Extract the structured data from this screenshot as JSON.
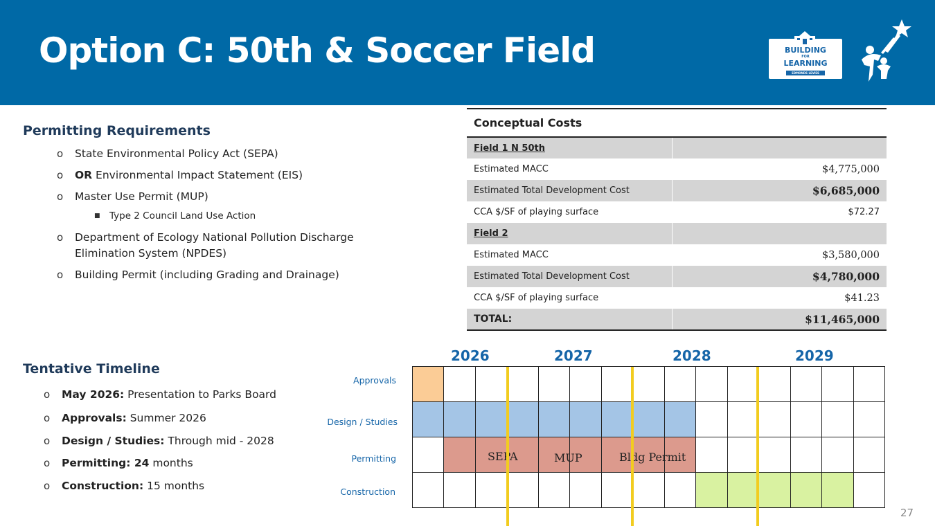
{
  "title": "Option C: 50th & Soccer Field",
  "logo": {
    "line1": "BUILDING",
    "line2": "FOR",
    "line3": "LEARNING",
    "line4": "EDMONDS LEVIES"
  },
  "permitting": {
    "heading": "Permitting Requirements",
    "items": [
      {
        "bold": "",
        "text": "State Environmental Policy Act (SEPA)"
      },
      {
        "bold": "OR",
        "text": " Environmental Impact Statement (EIS)"
      },
      {
        "bold": "",
        "text": "Master Use Permit (MUP)"
      },
      {
        "sub": "Type 2 Council Land Use Action"
      },
      {
        "bold": "",
        "text": "Department of Ecology National Pollution Discharge"
      },
      {
        "cont": "Elimination System (NPDES)"
      },
      {
        "bold": "",
        "text": "Building Permit (including Grading and Drainage)"
      }
    ]
  },
  "timeline": {
    "heading": "Tentative Timeline",
    "items": [
      {
        "bold": "May 2026:",
        "text": " Presentation to Parks Board"
      },
      {
        "bold": "Approvals:",
        "text": " Summer 2026"
      },
      {
        "bold": "Design / Studies:",
        "text": " Through mid - 2028"
      },
      {
        "bold": "Permitting: 24",
        "text": " months"
      },
      {
        "bold": "Construction:",
        "text": " 15 months"
      }
    ]
  },
  "costs": {
    "caption": "Conceptual Costs",
    "field1": {
      "label": "Field 1 N 50th",
      "macc_label": "Estimated MACC",
      "macc": "$4,775,000",
      "tdc_label": "Estimated Total Development Cost",
      "tdc": "$6,685,000",
      "sf_label": "CCA $/SF of playing surface",
      "sf": "$72.27"
    },
    "field2": {
      "label": "Field 2",
      "macc_label": "Estimated MACC",
      "macc": "$3,580,000",
      "tdc_label": "Estimated Total Development Cost",
      "tdc": "$4,780,000",
      "sf_label": "CCA $/SF of playing surface",
      "sf": "$41.23"
    },
    "total_label": "TOTAL:",
    "total": "$11,465,000"
  },
  "gantt": {
    "years": [
      "2026",
      "2027",
      "2028",
      "2029"
    ],
    "rows": [
      "Approvals",
      "Design / Studies",
      "Permitting",
      "Construction"
    ],
    "columns": 15,
    "bars": [
      {
        "row": 0,
        "start": 0,
        "end": 1,
        "color": "#fbcc96"
      },
      {
        "row": 1,
        "start": 0,
        "end": 9,
        "color": "#a4c5e6"
      },
      {
        "row": 2,
        "start": 1,
        "end": 9,
        "color": "#dc9a8d"
      },
      {
        "row": 3,
        "start": 9,
        "end": 14,
        "color": "#d9f2a1"
      }
    ],
    "permit_labels": [
      "SEPA",
      "MUP",
      "Bldg Permit"
    ],
    "line_color": "#f2cc1f"
  },
  "page_number": "27"
}
